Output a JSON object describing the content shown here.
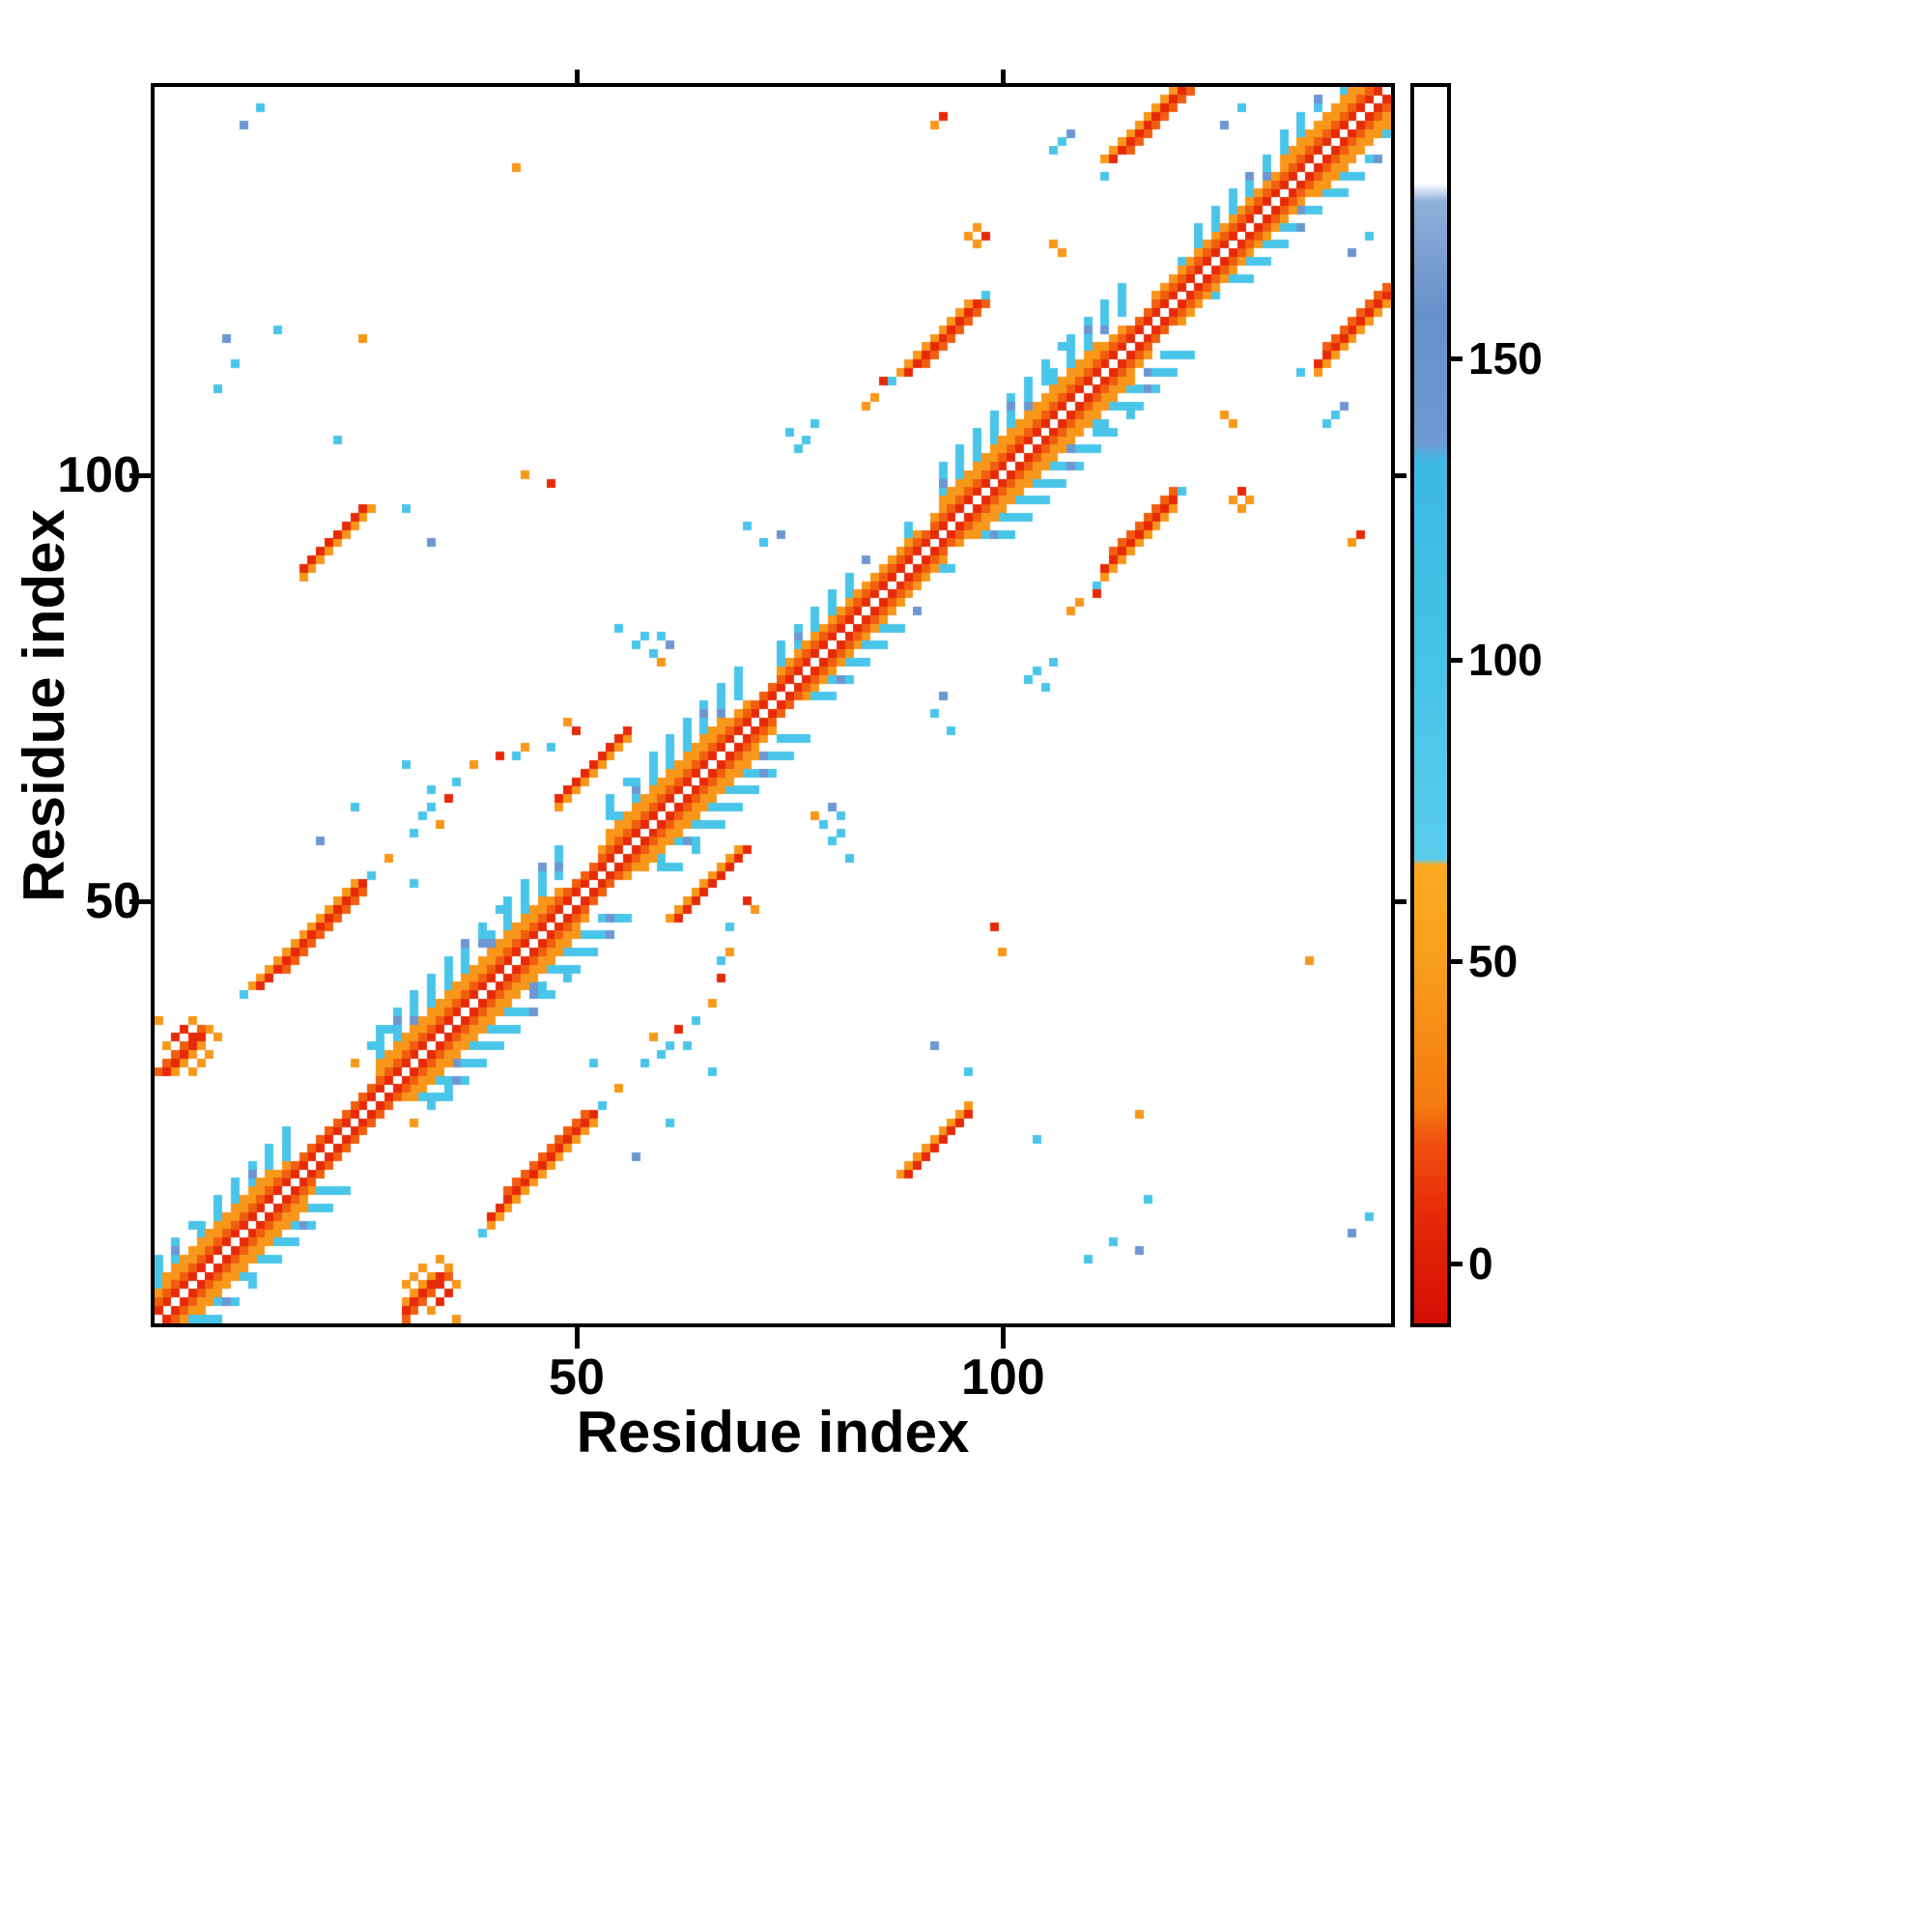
{
  "chart_data": {
    "type": "heatmap",
    "title": "",
    "xlabel": "Residue index",
    "ylabel": "Residue index",
    "n_residues": 145,
    "x_range": [
      1,
      145
    ],
    "y_range": [
      1,
      145
    ],
    "x_ticks": [
      50,
      100
    ],
    "y_ticks": [
      50,
      100
    ],
    "grid": false,
    "background_value_color": "#ffffff",
    "colorbar": {
      "position": "right",
      "ticks": [
        0,
        50,
        100,
        150
      ],
      "tick_labels": [
        "0",
        "50",
        "100",
        "150"
      ],
      "domain": [
        -10,
        195
      ],
      "stops": [
        {
          "v": -10,
          "c": "#d50f04"
        },
        {
          "v": 8,
          "c": "#e62a08"
        },
        {
          "v": 20,
          "c": "#f0500f"
        },
        {
          "v": 26,
          "c": "#f57a10"
        },
        {
          "v": 50,
          "c": "#f99e1c"
        },
        {
          "v": 66,
          "c": "#fbaa22"
        },
        {
          "v": 67,
          "c": "#59cdec"
        },
        {
          "v": 100,
          "c": "#46c3e8"
        },
        {
          "v": 133,
          "c": "#3eb8e4"
        },
        {
          "v": 136,
          "c": "#6e99d2"
        },
        {
          "v": 158,
          "c": "#6890cb"
        },
        {
          "v": 176,
          "c": "#8fb0da"
        },
        {
          "v": 179,
          "c": "#ffffff"
        },
        {
          "v": 195,
          "c": "#ffffff"
        }
      ]
    },
    "symmetric": true,
    "diagonal_excluded": true,
    "bands": [
      {
        "from": 1,
        "to": 144,
        "off": 1,
        "v": 8
      },
      {
        "from": 1,
        "to": 143,
        "off": 2,
        "v": 22
      },
      {
        "from": 1,
        "to": 16,
        "off": 3,
        "v": 45
      },
      {
        "from": 2,
        "to": 14,
        "off": 4,
        "v": 45
      },
      {
        "from": 27,
        "to": 48,
        "off": 3,
        "v": 45
      },
      {
        "from": 27,
        "to": 46,
        "off": 4,
        "v": 45
      },
      {
        "from": 53,
        "to": 70,
        "off": 3,
        "v": 45
      },
      {
        "from": 54,
        "to": 67,
        "off": 4,
        "v": 45
      },
      {
        "from": 74,
        "to": 90,
        "off": 3,
        "v": 45
      },
      {
        "from": 92,
        "to": 114,
        "off": 3,
        "v": 45
      },
      {
        "from": 93,
        "to": 111,
        "off": 4,
        "v": 45
      },
      {
        "from": 118,
        "to": 131,
        "off": 3,
        "v": 45
      },
      {
        "from": 132,
        "to": 144,
        "off": 3,
        "v": 45
      },
      {
        "from": 133,
        "to": 142,
        "off": 4,
        "v": 45
      }
    ],
    "halos": [
      {
        "from": 1,
        "to": 16,
        "omin": 4,
        "omax": 7,
        "density": 0.45
      },
      {
        "from": 27,
        "to": 48,
        "omin": 5,
        "omax": 8,
        "density": 0.5
      },
      {
        "from": 53,
        "to": 70,
        "omin": 5,
        "omax": 8,
        "density": 0.45
      },
      {
        "from": 74,
        "to": 90,
        "omin": 4,
        "omax": 6,
        "density": 0.35
      },
      {
        "from": 92,
        "to": 114,
        "omin": 5,
        "omax": 8,
        "density": 0.5
      },
      {
        "from": 118,
        "to": 131,
        "omin": 4,
        "omax": 6,
        "density": 0.35
      },
      {
        "from": 132,
        "to": 145,
        "omin": 5,
        "omax": 7,
        "density": 0.45
      }
    ],
    "streaks": [
      {
        "i": 40,
        "j": 13,
        "l": 13,
        "v": 8
      },
      {
        "i": 40,
        "j": 12,
        "l": 13,
        "v": 45
      },
      {
        "i": 42,
        "j": 16,
        "l": 10,
        "v": 22
      },
      {
        "i": 48,
        "j": 62,
        "l": 9,
        "v": 8
      },
      {
        "i": 48,
        "j": 61,
        "l": 9,
        "v": 45
      },
      {
        "i": 112,
        "j": 89,
        "l": 9,
        "v": 8
      },
      {
        "i": 112,
        "j": 88,
        "l": 9,
        "v": 45
      },
      {
        "i": 113,
        "j": 91,
        "l": 8,
        "v": 22
      },
      {
        "i": 113,
        "j": 137,
        "l": 9,
        "v": 8
      },
      {
        "i": 112,
        "j": 137,
        "l": 9,
        "v": 45
      },
      {
        "i": 115,
        "j": 138,
        "l": 8,
        "v": 22
      },
      {
        "i": 89,
        "j": 18,
        "l": 8,
        "v": 8
      },
      {
        "i": 88,
        "j": 18,
        "l": 9,
        "v": 45
      },
      {
        "i": 1,
        "j": 30,
        "l": 6,
        "v": 22
      },
      {
        "i": 2,
        "j": 30,
        "l": 5,
        "v": 8
      },
      {
        "i": 3,
        "j": 30,
        "l": 4,
        "v": 45
      }
    ],
    "cells": [
      [
        13,
        143,
        95
      ],
      [
        11,
        141,
        140
      ],
      [
        8,
        110,
        95
      ],
      [
        10,
        113,
        95
      ],
      [
        9,
        116,
        140
      ],
      [
        15,
        117,
        95
      ],
      [
        25,
        116,
        45
      ],
      [
        22,
        104,
        95
      ],
      [
        30,
        96,
        95
      ],
      [
        33,
        92,
        140
      ],
      [
        44,
        100,
        45
      ],
      [
        47,
        99,
        8
      ],
      [
        59,
        79,
        95
      ],
      [
        60,
        81,
        95
      ],
      [
        58,
        81,
        95
      ],
      [
        60,
        78,
        45
      ],
      [
        61,
        80,
        140
      ],
      [
        77,
        104,
        95
      ],
      [
        78,
        106,
        95
      ],
      [
        76,
        103,
        95
      ],
      [
        75,
        105,
        95
      ],
      [
        85,
        109,
        45
      ],
      [
        86,
        111,
        8
      ],
      [
        84,
        108,
        45
      ],
      [
        97,
        127,
        45
      ],
      [
        96,
        128,
        45
      ],
      [
        98,
        128,
        8
      ],
      [
        97,
        129,
        45
      ],
      [
        106,
        127,
        45
      ],
      [
        107,
        126,
        45
      ],
      [
        106,
        138,
        95
      ],
      [
        107,
        139,
        95
      ],
      [
        108,
        140,
        140
      ],
      [
        92,
        141,
        45
      ],
      [
        93,
        142,
        8
      ],
      [
        63,
        33,
        95
      ],
      [
        66,
        30,
        95
      ],
      [
        52,
        31,
        95
      ],
      [
        55,
        28,
        45
      ],
      [
        70,
        50,
        8
      ],
      [
        71,
        49,
        45
      ],
      [
        68,
        47,
        95
      ],
      [
        36,
        64,
        95
      ],
      [
        38,
        66,
        45
      ],
      [
        41,
        67,
        8
      ],
      [
        43,
        67,
        95
      ],
      [
        44,
        68,
        45
      ],
      [
        32,
        60,
        95
      ],
      [
        33,
        61,
        95
      ],
      [
        31,
        58,
        95
      ],
      [
        34,
        59,
        45
      ],
      [
        35,
        62,
        8
      ],
      [
        92,
        72,
        95
      ],
      [
        94,
        70,
        95
      ],
      [
        93,
        74,
        140
      ],
      [
        61,
        24,
        95
      ],
      [
        57,
        20,
        140
      ],
      [
        136,
        43,
        45
      ],
      [
        141,
        126,
        140
      ],
      [
        143,
        128,
        95
      ],
      [
        39,
        11,
        95
      ],
      [
        53,
        26,
        95
      ],
      [
        111,
        87,
        95
      ],
      [
        121,
        98,
        95
      ],
      [
        112,
        135,
        95
      ],
      [
        31,
        4,
        45
      ],
      [
        32,
        4,
        8
      ],
      [
        33,
        4,
        45
      ],
      [
        31,
        6,
        45
      ],
      [
        33,
        6,
        45
      ],
      [
        34,
        5,
        8
      ],
      [
        30,
        5,
        45
      ],
      [
        32,
        7,
        45
      ],
      [
        35,
        7,
        45
      ],
      [
        34,
        8,
        45
      ],
      [
        3,
        34,
        8
      ],
      [
        4,
        35,
        8
      ],
      [
        5,
        36,
        45
      ],
      [
        2,
        33,
        45
      ],
      [
        1,
        36,
        45
      ],
      [
        28,
        35,
        95
      ],
      [
        26,
        33,
        95
      ],
      [
        24,
        31,
        45
      ],
      [
        80,
        57,
        95
      ],
      [
        82,
        55,
        95
      ]
    ]
  }
}
